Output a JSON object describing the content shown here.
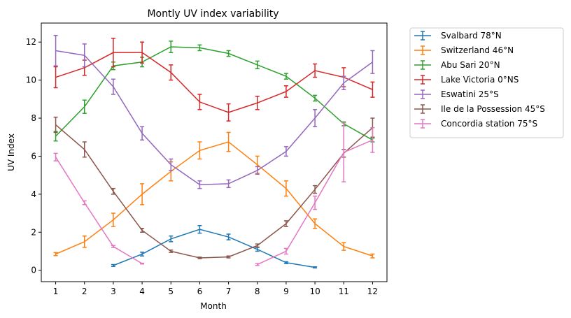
{
  "chart_data": {
    "type": "line",
    "title": "Montly UV index variability",
    "xlabel": "Month",
    "ylabel": "UV Index",
    "x": [
      1,
      2,
      3,
      4,
      5,
      6,
      7,
      8,
      9,
      10,
      11,
      12
    ],
    "xlim": [
      0.5,
      12.5
    ],
    "ylim": [
      -0.6,
      13.0
    ],
    "yticks": [
      0,
      2,
      4,
      6,
      8,
      10,
      12
    ],
    "grid": false,
    "legend_placement": "outside-top-right",
    "error_bars": true,
    "series": [
      {
        "name": "Svalbard 78°N",
        "color": "#1f77b4",
        "values": [
          null,
          null,
          0.25,
          0.85,
          1.65,
          2.15,
          1.75,
          1.1,
          0.4,
          0.15,
          null,
          null
        ],
        "errors": [
          null,
          null,
          0.05,
          0.1,
          0.15,
          0.2,
          0.15,
          0.1,
          0.05,
          0.03,
          null,
          null
        ]
      },
      {
        "name": "Switzerland 46°N",
        "color": "#ff7f0e",
        "values": [
          0.85,
          1.5,
          2.65,
          4.0,
          5.2,
          6.3,
          6.75,
          5.55,
          4.3,
          2.45,
          1.25,
          0.75
        ],
        "errors": [
          0.08,
          0.3,
          0.35,
          0.55,
          0.5,
          0.45,
          0.5,
          0.45,
          0.4,
          0.25,
          0.2,
          0.1
        ]
      },
      {
        "name": "Abu Sari 20°N",
        "color": "#2ca02c",
        "values": [
          7.05,
          8.6,
          10.75,
          10.95,
          11.75,
          11.7,
          11.4,
          10.8,
          10.2,
          9.05,
          7.7,
          6.85
        ],
        "errors": [
          0.25,
          0.35,
          0.2,
          0.25,
          0.3,
          0.15,
          0.15,
          0.2,
          0.15,
          0.15,
          0.1,
          0.1
        ]
      },
      {
        "name": "Lake Victoria 0°NS",
        "color": "#d62728",
        "values": [
          10.15,
          10.65,
          11.45,
          11.45,
          10.4,
          8.85,
          8.3,
          8.8,
          9.4,
          10.5,
          10.15,
          9.5
        ],
        "errors": [
          0.55,
          0.4,
          0.75,
          0.55,
          0.4,
          0.4,
          0.45,
          0.35,
          0.3,
          0.35,
          0.5,
          0.4
        ]
      },
      {
        "name": "Eswatini 25°S",
        "color": "#9467bd",
        "values": [
          11.55,
          11.3,
          9.65,
          7.2,
          5.55,
          4.5,
          4.55,
          5.25,
          6.25,
          8.0,
          9.85,
          10.95
        ],
        "errors": [
          0.8,
          0.6,
          0.4,
          0.35,
          0.3,
          0.2,
          0.2,
          0.2,
          0.25,
          0.45,
          0.35,
          0.6
        ]
      },
      {
        "name": "Ile de la Possession 45°S",
        "color": "#8c564b",
        "values": [
          7.65,
          6.35,
          4.15,
          2.1,
          1.0,
          0.65,
          0.7,
          1.3,
          2.45,
          4.25,
          6.15,
          7.5
        ],
        "errors": [
          0.4,
          0.4,
          0.15,
          0.1,
          0.06,
          0.04,
          0.05,
          0.08,
          0.15,
          0.2,
          0.2,
          0.5
        ]
      },
      {
        "name": "Concordia station 75°S",
        "color": "#e377c2",
        "values": [
          5.95,
          3.55,
          1.25,
          0.35,
          null,
          null,
          null,
          0.3,
          1.0,
          3.55,
          6.2,
          6.85
        ],
        "errors": [
          0.2,
          0.1,
          0.05,
          0.02,
          null,
          null,
          null,
          0.05,
          0.15,
          0.35,
          1.55,
          0.65
        ]
      }
    ]
  }
}
